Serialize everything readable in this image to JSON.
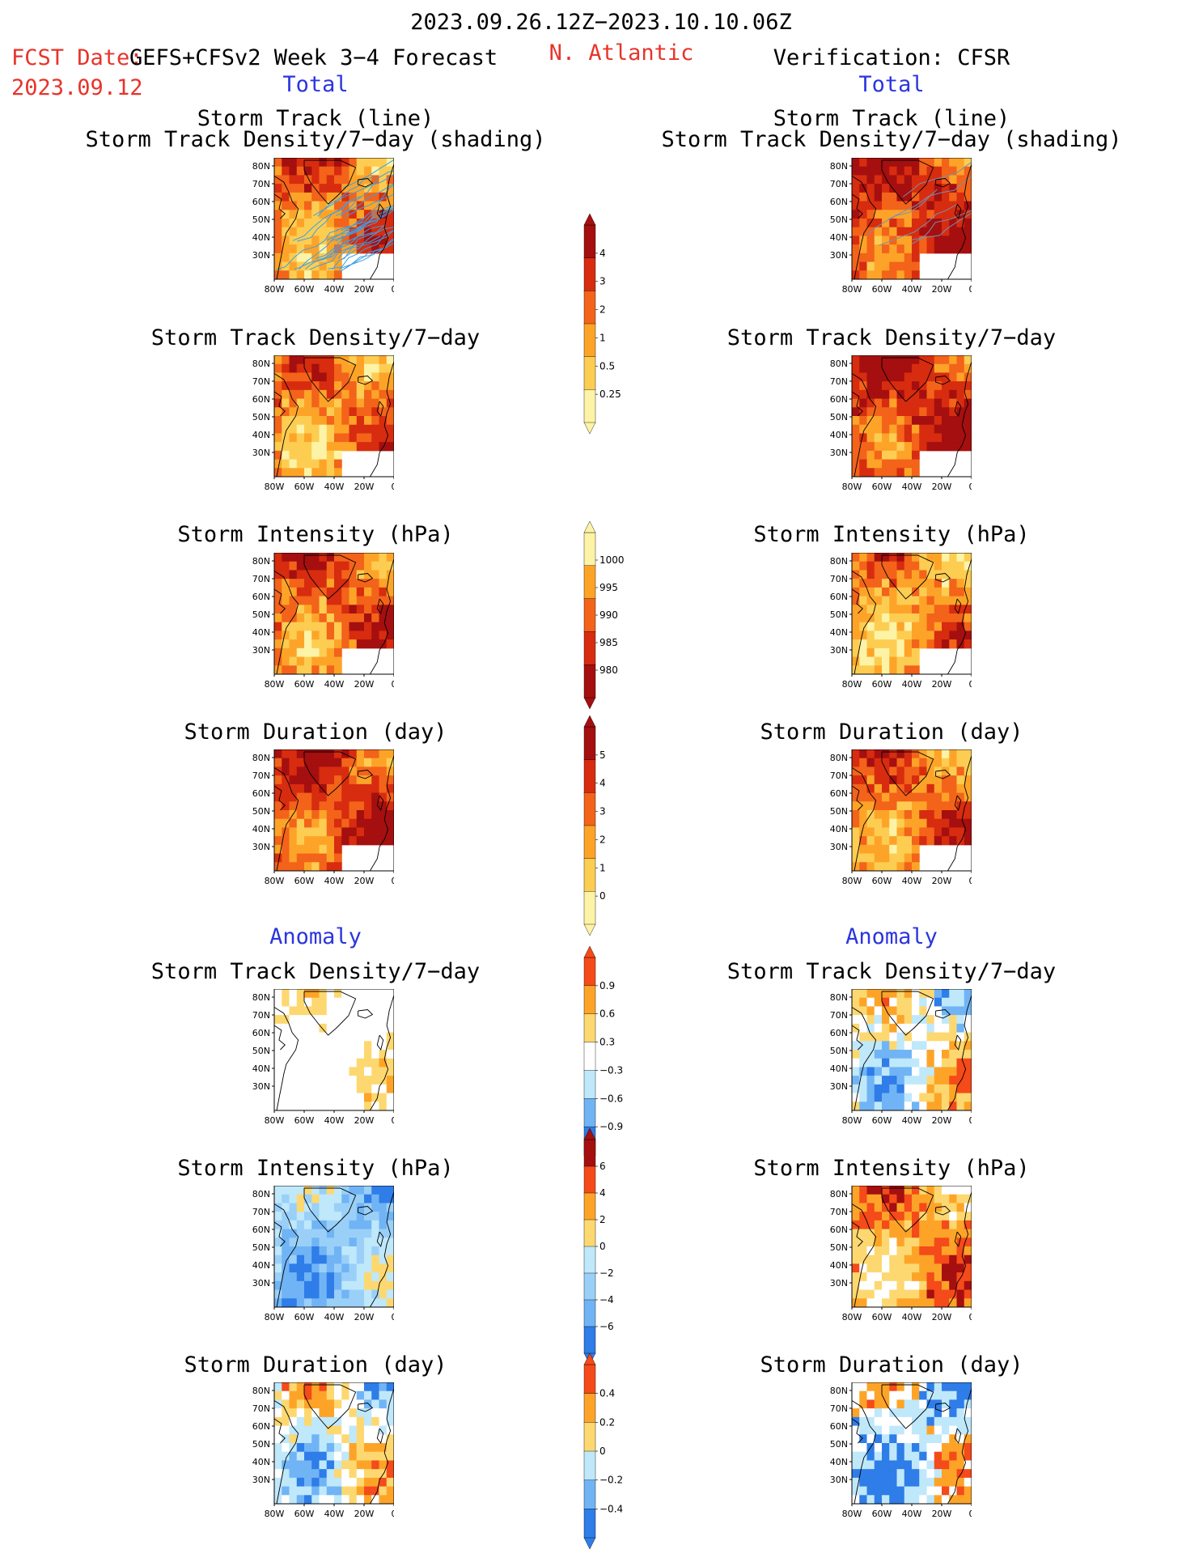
{
  "header": {
    "period": "2023.09.26.12Z−2023.10.10.06Z",
    "fcst_label": "FCST Date:",
    "fcst_model": "GEFS+CFSv2 Week 3−4 Forecast",
    "fcst_date": "2023.09.12",
    "region": "N. Atlantic",
    "verification": "Verification: CFSR"
  },
  "sections": {
    "total": "Total",
    "anomaly": "Anomaly"
  },
  "panel_titles": {
    "track_line": "Storm Track (line)",
    "track_shading": "Storm Track Density/7−day (shading)",
    "density": "Storm Track Density/7−day",
    "intensity": "Storm Intensity (hPa)",
    "duration": "Storm Duration (day)"
  },
  "map_axes": {
    "lat_ticks": [
      "80N",
      "70N",
      "60N",
      "50N",
      "40N",
      "30N"
    ],
    "lon_ticks": [
      "80W",
      "60W",
      "40W",
      "20W",
      "0"
    ]
  },
  "colorbars": [
    {
      "id": "density_total",
      "labels": [
        "4",
        "3",
        "2",
        "1",
        "0.5",
        "0.25"
      ],
      "colors": [
        "#a50f0f",
        "#d72c0f",
        "#f3631a",
        "#fda428",
        "#fdcd52",
        "#fdf3a6"
      ]
    },
    {
      "id": "intensity_total",
      "labels": [
        "1000",
        "995",
        "990",
        "985",
        "980"
      ],
      "colors": [
        "#fdf3a6",
        "#fda428",
        "#f3631a",
        "#d72c0f",
        "#a50f0f"
      ]
    },
    {
      "id": "duration_total",
      "labels": [
        "5",
        "4",
        "3",
        "2",
        "1",
        "0"
      ],
      "colors": [
        "#a50f0f",
        "#d72c0f",
        "#f3631a",
        "#fda428",
        "#fdcd52",
        "#fdf3a6"
      ]
    },
    {
      "id": "density_anom",
      "labels": [
        "0.9",
        "0.6",
        "0.3",
        "−0.3",
        "−0.6",
        "−0.9"
      ],
      "colors": [
        "#f54a1a",
        "#fda428",
        "#fdd870",
        "#ffffff",
        "#bfe8fb",
        "#70b4f5",
        "#2e7de8"
      ]
    },
    {
      "id": "intensity_anom",
      "labels": [
        "6",
        "4",
        "2",
        "0",
        "−2",
        "−4",
        "−6"
      ],
      "colors": [
        "#a50f0f",
        "#f54a1a",
        "#fda428",
        "#fdd870",
        "#bfe8fb",
        "#9ad0f8",
        "#70b4f5",
        "#2e7de8"
      ]
    },
    {
      "id": "duration_anom",
      "labels": [
        "0.4",
        "0.2",
        "0",
        "−0.2",
        "−0.4"
      ],
      "colors": [
        "#f54a1a",
        "#fda428",
        "#fdd870",
        "#bfe8fb",
        "#70b4f5",
        "#2e7de8"
      ]
    }
  ],
  "colors": {
    "header_red": "#e8332a",
    "section_blue": "#2b35e0",
    "track_line_forecast": "#3aa0e8",
    "track_line_cfsr": "#7a8fb0"
  }
}
